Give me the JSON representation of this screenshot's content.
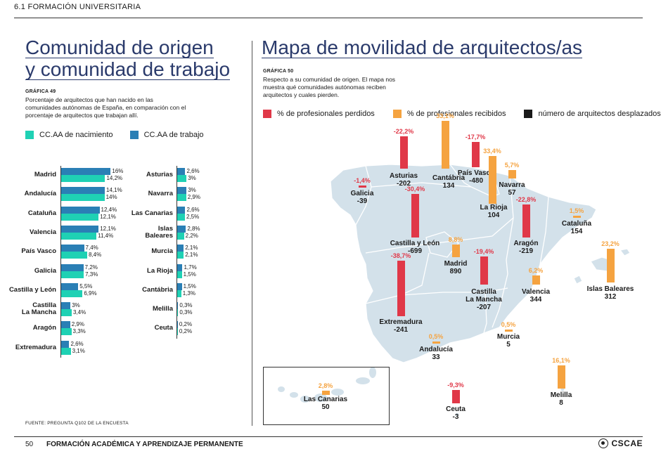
{
  "header": {
    "section": "6.1 FORMACIÓN UNIVERSITARIA"
  },
  "left": {
    "title_line1": "Comunidad de origen",
    "title_line2": "y comunidad de trabajo",
    "grafica": "GRÁFICA 49",
    "description": "Porcentaje de arquitectos que han nacido en las comunidades autónomas de España, en comparación con el porcentaje de arquitectos que trabajan allí.",
    "legend": [
      {
        "label": "CC.AA de nacimiento",
        "color": "#1fd1b4"
      },
      {
        "label": "CC.AA de trabajo",
        "color": "#2a7fb5"
      }
    ]
  },
  "chart_data": {
    "type": "bar",
    "series": [
      {
        "name": "CC.AA de trabajo",
        "color": "#2a7fb5"
      },
      {
        "name": "CC.AA de nacimiento",
        "color": "#1fd1b4"
      }
    ],
    "groups": [
      {
        "rows": [
          {
            "label": "Madrid",
            "trabajo": 16,
            "nacimiento": 14.2,
            "trabajo_label": "16%",
            "nacimiento_label": "14,2%"
          },
          {
            "label": "Andalucía",
            "trabajo": 14.1,
            "nacimiento": 14,
            "trabajo_label": "14,1%",
            "nacimiento_label": "14%"
          },
          {
            "label": "Cataluña",
            "trabajo": 12.4,
            "nacimiento": 12.1,
            "trabajo_label": "12,4%",
            "nacimiento_label": "12,1%"
          },
          {
            "label": "Valencia",
            "trabajo": 12.1,
            "nacimiento": 11.4,
            "trabajo_label": "12,1%",
            "nacimiento_label": "11,4%"
          },
          {
            "label": "País Vasco",
            "trabajo": 7.4,
            "nacimiento": 8.4,
            "trabajo_label": "7,4%",
            "nacimiento_label": "8,4%"
          },
          {
            "label": "Galicia",
            "trabajo": 7.2,
            "nacimiento": 7.3,
            "trabajo_label": "7,2%",
            "nacimiento_label": "7,3%"
          },
          {
            "label": "Castilla y León",
            "trabajo": 5.5,
            "nacimiento": 6.9,
            "trabajo_label": "5,5%",
            "nacimiento_label": "6,9%"
          },
          {
            "label": "Castilla\nLa Mancha",
            "trabajo": 3,
            "nacimiento": 3.4,
            "trabajo_label": "3%",
            "nacimiento_label": "3,4%"
          },
          {
            "label": "Aragón",
            "trabajo": 2.9,
            "nacimiento": 3.3,
            "trabajo_label": "2,9%",
            "nacimiento_label": "3,3%"
          },
          {
            "label": "Extremadura",
            "trabajo": 2.6,
            "nacimiento": 3.1,
            "trabajo_label": "2,6%",
            "nacimiento_label": "3,1%"
          }
        ]
      },
      {
        "rows": [
          {
            "label": "Asturias",
            "trabajo": 2.6,
            "nacimiento": 3,
            "trabajo_label": "2,6%",
            "nacimiento_label": "3%"
          },
          {
            "label": "Navarra",
            "trabajo": 3,
            "nacimiento": 2.9,
            "trabajo_label": "3%",
            "nacimiento_label": "2,9%"
          },
          {
            "label": "Las Canarias",
            "trabajo": 2.6,
            "nacimiento": 2.5,
            "trabajo_label": "2,6%",
            "nacimiento_label": "2,5%"
          },
          {
            "label": "Islas\nBaleares",
            "trabajo": 2.8,
            "nacimiento": 2.2,
            "trabajo_label": "2,8%",
            "nacimiento_label": "2,2%"
          },
          {
            "label": "Murcia",
            "trabajo": 2.1,
            "nacimiento": 2.1,
            "trabajo_label": "2,1%",
            "nacimiento_label": "2,1%"
          },
          {
            "label": "La Rioja",
            "trabajo": 1.7,
            "nacimiento": 1.5,
            "trabajo_label": "1,7%",
            "nacimiento_label": "1,5%"
          },
          {
            "label": "Cantábria",
            "trabajo": 1.5,
            "nacimiento": 1.3,
            "trabajo_label": "1,5%",
            "nacimiento_label": "1,3%"
          },
          {
            "label": "Melilla",
            "trabajo": 0.3,
            "nacimiento": 0.3,
            "trabajo_label": "0,3%",
            "nacimiento_label": "0,3%"
          },
          {
            "label": "Ceuta",
            "trabajo": 0.2,
            "nacimiento": 0.2,
            "trabajo_label": "0,2%",
            "nacimiento_label": "0,2%"
          }
        ]
      }
    ]
  },
  "right": {
    "title": "Mapa de movilidad de arquitectos/as",
    "grafica": "GRÁFICA 50",
    "description": "Respecto a su comunidad de origen. El mapa nos muestra qué comunidades autónomas reciben arquitectos y cuales pierden.",
    "legend": [
      {
        "label": "% de profesionales perdidos",
        "color": "#e03848"
      },
      {
        "label": "% de profesionales recibidos",
        "color": "#f5a340"
      },
      {
        "label": "número de arquitectos desplazados",
        "color": "#1a1a1a"
      }
    ],
    "regions": [
      {
        "key": "galicia",
        "name": "Galicia",
        "number": "-39",
        "pct": "-1,4%",
        "kind": "lost",
        "value": -1.4
      },
      {
        "key": "asturias",
        "name": "Asturias",
        "number": "-202",
        "pct": "-22,2%",
        "kind": "lost",
        "value": -22.2
      },
      {
        "key": "cantabria",
        "name": "Cantábria",
        "number": "134",
        "pct": "33,1%",
        "kind": "received",
        "value": 33.1
      },
      {
        "key": "paisvasco",
        "name": "País Vasco",
        "number": "-480",
        "pct": "-17,7%",
        "kind": "lost",
        "value": -17.7
      },
      {
        "key": "larioja",
        "name": "La Rioja",
        "number": "104",
        "pct": "33,4%",
        "kind": "received",
        "value": 33.4
      },
      {
        "key": "navarra",
        "name": "Navarra",
        "number": "57",
        "pct": "5,7%",
        "kind": "received",
        "value": 5.7
      },
      {
        "key": "aragon",
        "name": "Aragón",
        "number": "-219",
        "pct": "-22,8%",
        "kind": "lost",
        "value": -22.8
      },
      {
        "key": "cataluna",
        "name": "Cataluña",
        "number": "154",
        "pct": "1,5%",
        "kind": "received",
        "value": 1.5
      },
      {
        "key": "castillaleon",
        "name": "Castilla y León",
        "number": "-699",
        "pct": "-30,4%",
        "kind": "lost",
        "value": -30.4
      },
      {
        "key": "madrid",
        "name": "Madrid",
        "number": "890",
        "pct": "8,8%",
        "kind": "received",
        "value": 8.8
      },
      {
        "key": "castillamancha",
        "name": "Castilla\nLa Mancha",
        "number": "-207",
        "pct": "-19,4%",
        "kind": "lost",
        "value": -19.4
      },
      {
        "key": "extremadura",
        "name": "Extremadura",
        "number": "-241",
        "pct": "-38,7%",
        "kind": "lost",
        "value": -38.7
      },
      {
        "key": "valencia",
        "name": "Valencia",
        "number": "344",
        "pct": "6,2%",
        "kind": "received",
        "value": 6.2
      },
      {
        "key": "baleares",
        "name": "Islas Baleares",
        "number": "312",
        "pct": "23,2%",
        "kind": "received",
        "value": 23.2
      },
      {
        "key": "murcia",
        "name": "Murcia",
        "number": "5",
        "pct": "0,5%",
        "kind": "received",
        "value": 0.5
      },
      {
        "key": "andalucia",
        "name": "Andalucía",
        "number": "33",
        "pct": "0,5%",
        "kind": "received",
        "value": 0.5
      },
      {
        "key": "canarias",
        "name": "Las Canarias",
        "number": "50",
        "pct": "2,8%",
        "kind": "received",
        "value": 2.8
      },
      {
        "key": "ceuta",
        "name": "Ceuta",
        "number": "-3",
        "pct": "-9,3%",
        "kind": "lost",
        "value": -9.3
      },
      {
        "key": "melilla",
        "name": "Melilla",
        "number": "8",
        "pct": "16,1%",
        "kind": "received",
        "value": 16.1
      }
    ]
  },
  "footer": {
    "source": "FUENTE: PREGUNTA Q102 DE LA ENCUESTA",
    "page_number": "50",
    "page_title": "FORMACIÓN ACADÉMICA Y APRENDIZAJE PERMANENTE",
    "logo_text": "CSCAE"
  }
}
